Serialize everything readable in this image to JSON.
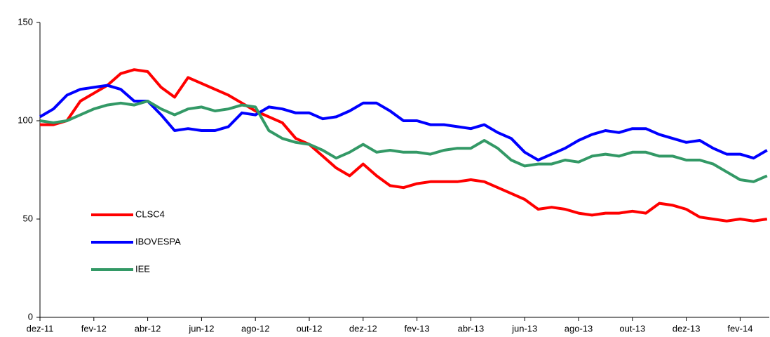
{
  "chart_data": {
    "type": "line",
    "categories": [
      "dez-11",
      null,
      null,
      null,
      "fev-12",
      null,
      null,
      null,
      "abr-12",
      null,
      null,
      null,
      "jun-12",
      null,
      null,
      null,
      "ago-12",
      null,
      null,
      null,
      "out-12",
      null,
      null,
      null,
      "dez-12",
      null,
      null,
      null,
      "fev-13",
      null,
      null,
      null,
      "abr-13",
      null,
      null,
      null,
      "jun-13",
      null,
      null,
      null,
      "ago-13",
      null,
      null,
      null,
      "out-13",
      null,
      null,
      null,
      "dez-13",
      null,
      null,
      null,
      "fev-14",
      null,
      null
    ],
    "series": [
      {
        "name": "CLSC4",
        "color": "#ff0000",
        "values": [
          98,
          98,
          100,
          110,
          114,
          118,
          124,
          126,
          125,
          117,
          112,
          122,
          119,
          116,
          113,
          109,
          105,
          102,
          99,
          91,
          88,
          82,
          76,
          72,
          78,
          72,
          67,
          66,
          68,
          69,
          69,
          69,
          70,
          69,
          66,
          63,
          60,
          55,
          56,
          55,
          53,
          52,
          53,
          53,
          54,
          53,
          58,
          57,
          55,
          51,
          50,
          49,
          50,
          49,
          50
        ]
      },
      {
        "name": "IBOVESPA",
        "color": "#0000ff",
        "values": [
          102,
          106,
          113,
          116,
          117,
          118,
          116,
          110,
          110,
          103,
          95,
          96,
          95,
          95,
          97,
          104,
          103,
          107,
          106,
          104,
          104,
          101,
          102,
          105,
          109,
          109,
          105,
          100,
          100,
          98,
          98,
          97,
          96,
          98,
          94,
          91,
          84,
          80,
          83,
          86,
          90,
          93,
          95,
          94,
          96,
          96,
          93,
          91,
          89,
          90,
          86,
          83,
          83,
          81,
          85
        ]
      },
      {
        "name": "IEE",
        "color": "#339966",
        "values": [
          100,
          99,
          100,
          103,
          106,
          108,
          109,
          108,
          110,
          106,
          103,
          106,
          107,
          105,
          106,
          108,
          107,
          95,
          91,
          89,
          88,
          85,
          81,
          84,
          88,
          84,
          85,
          84,
          84,
          83,
          85,
          86,
          86,
          90,
          86,
          80,
          77,
          78,
          78,
          80,
          79,
          82,
          83,
          82,
          84,
          84,
          82,
          82,
          80,
          80,
          78,
          74,
          70,
          69,
          72
        ]
      }
    ],
    "ylim": [
      0,
      150
    ],
    "yticks": [
      0,
      50,
      100,
      150
    ],
    "legend": "lower left"
  }
}
